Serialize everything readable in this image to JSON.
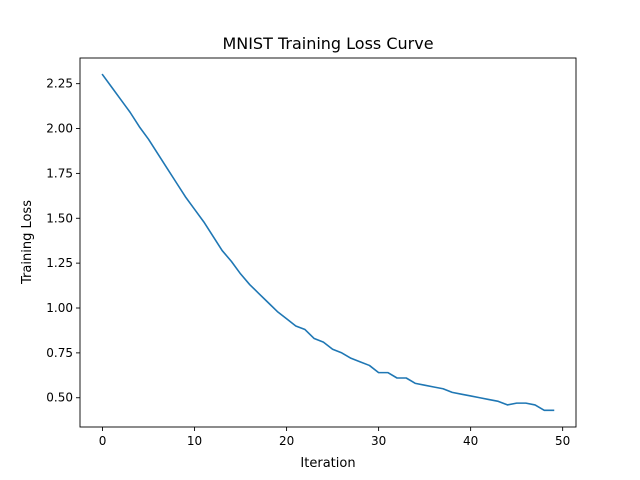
{
  "chart_data": {
    "type": "line",
    "title": "MNIST Training Loss Curve",
    "xlabel": "Iteration",
    "ylabel": "Training Loss",
    "xlim": [
      -2.45,
      51.45
    ],
    "ylim": [
      0.337,
      2.393
    ],
    "xticks": [
      0,
      10,
      20,
      30,
      40,
      50
    ],
    "yticks": [
      0.5,
      0.75,
      1.0,
      1.25,
      1.5,
      1.75,
      2.0,
      2.25
    ],
    "ytick_labels": [
      "0.50",
      "0.75",
      "1.00",
      "1.25",
      "1.50",
      "1.75",
      "2.00",
      "2.25"
    ],
    "grid": false,
    "line_color": "#1f77b4",
    "series": [
      {
        "x": [
          0,
          1,
          2,
          3,
          4,
          5,
          6,
          7,
          8,
          9,
          10,
          11,
          12,
          13,
          14,
          15,
          16,
          17,
          18,
          19,
          20,
          21,
          22,
          23,
          24,
          25,
          26,
          27,
          28,
          29,
          30,
          31,
          32,
          33,
          34,
          35,
          36,
          37,
          38,
          39,
          40,
          41,
          42,
          43,
          44,
          45,
          46,
          47,
          48,
          49
        ],
        "values": [
          2.3,
          2.23,
          2.16,
          2.09,
          2.01,
          1.94,
          1.86,
          1.78,
          1.7,
          1.62,
          1.55,
          1.48,
          1.4,
          1.32,
          1.26,
          1.19,
          1.13,
          1.08,
          1.03,
          0.98,
          0.94,
          0.9,
          0.88,
          0.83,
          0.81,
          0.77,
          0.75,
          0.72,
          0.7,
          0.68,
          0.64,
          0.64,
          0.61,
          0.61,
          0.58,
          0.57,
          0.56,
          0.55,
          0.53,
          0.52,
          0.51,
          0.5,
          0.49,
          0.48,
          0.46,
          0.47,
          0.47,
          0.46,
          0.43,
          0.43
        ]
      }
    ]
  }
}
